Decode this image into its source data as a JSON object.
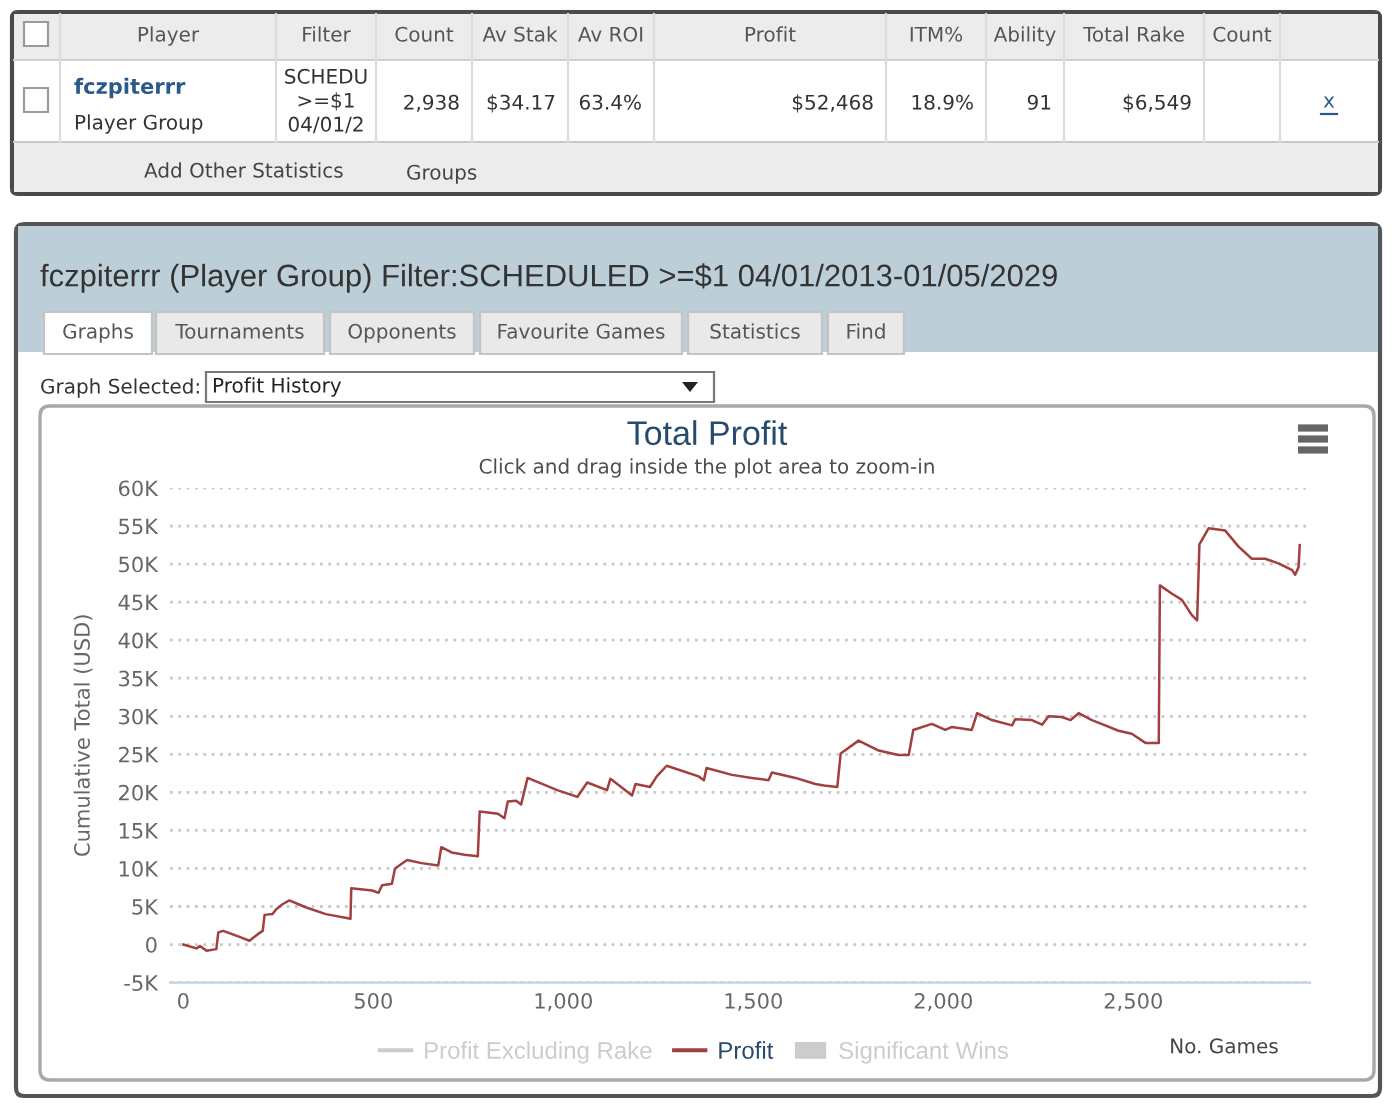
{
  "chart_data": [
    {
      "type": "other",
      "categories": [
        "Player",
        "Filter",
        "Count",
        "Av Stak",
        "Av ROI",
        "Profit",
        "ITM%",
        "Ability",
        "Total Rake",
        "Count"
      ],
      "annotations": [
        "fczpiterrr",
        "Player Group",
        "SCHEDU\n>=$1\n04/01/2",
        "2,938",
        "$34.17",
        "63.4%",
        "$52,468",
        "18.9%",
        "91",
        "$6,549",
        "x",
        "Add Other Statistics",
        "Groups"
      ]
    },
    {
      "type": "line",
      "title": "Total Profit",
      "subtitle": "Click and drag inside the plot area to zoom-in",
      "xlabel": "No. Games",
      "ylabel": "Cumulative Total (USD)",
      "annotations": [
        "fczpiterrr (Player Group) Filter:SCHEDULED >=$1 04/01/2013-01/05/2029",
        "Graphs",
        "Tournaments",
        "Opponents",
        "Favourite Games",
        "Statistics",
        "Find",
        "Graph Selected:",
        "Profit History"
      ],
      "xlim": [
        -35,
        2965
      ],
      "xticks": [
        0,
        500,
        {
          "value": 1000,
          "label": "1,000"
        },
        {
          "value": 1500,
          "label": "1,500"
        },
        {
          "value": 2000,
          "label": "2,000"
        },
        {
          "value": 2500,
          "label": "2,500"
        }
      ],
      "ylim": [
        -5000,
        60000
      ],
      "yticks": [
        {
          "value": -5000,
          "label": "-5K"
        },
        0,
        {
          "value": 5000,
          "label": "5K"
        },
        {
          "value": 10000,
          "label": "10K"
        },
        {
          "value": 15000,
          "label": "15K"
        },
        {
          "value": 20000,
          "label": "20K"
        },
        {
          "value": 25000,
          "label": "25K"
        },
        {
          "value": 30000,
          "label": "30K"
        },
        {
          "value": 35000,
          "label": "35K"
        },
        {
          "value": 40000,
          "label": "40K"
        },
        {
          "value": 45000,
          "label": "45K"
        },
        {
          "value": 50000,
          "label": "50K"
        },
        {
          "value": 55000,
          "label": "55K"
        },
        {
          "value": 60000,
          "label": "60K"
        }
      ],
      "grid": "y",
      "legend": "bottom",
      "series": [
        {
          "name": "Profit Excluding Rake",
          "type": "line",
          "color": "#cccccc"
        },
        {
          "name": "Profit",
          "type": "line",
          "color": "#a23f3f",
          "x": [
            0,
            35,
            44,
            61,
            87,
            92,
            105,
            148,
            174,
            197,
            209,
            214,
            235,
            244,
            261,
            279,
            322,
            375,
            430,
            440,
            442,
            497,
            514,
            523,
            549,
            557,
            589,
            627,
            671,
            679,
            706,
            740,
            775,
            780,
            828,
            845,
            854,
            876,
            889,
            906,
            984,
            1037,
            1063,
            1115,
            1124,
            1181,
            1190,
            1228,
            1246,
            1272,
            1356,
            1370,
            1377,
            1444,
            1496,
            1540,
            1549,
            1611,
            1663,
            1686,
            1721,
            1730,
            1777,
            1830,
            1882,
            1909,
            1921,
            1970,
            2005,
            2023,
            2075,
            2089,
            2128,
            2181,
            2189,
            2233,
            2260,
            2277,
            2312,
            2335,
            2356,
            2391,
            2426,
            2461,
            2496,
            2532,
            2567,
            2570,
            2602,
            2628,
            2654,
            2668,
            2674,
            2698,
            2742,
            2777,
            2812,
            2847,
            2882,
            2918,
            2926,
            2935,
            2938
          ],
          "values": [
            0,
            -500,
            -200,
            -800,
            -600,
            1600,
            1800,
            1000,
            500,
            1400,
            1800,
            3900,
            4000,
            4600,
            5300,
            5800,
            4900,
            4000,
            3500,
            3400,
            7400,
            7100,
            6800,
            7800,
            8000,
            10000,
            11100,
            10700,
            10400,
            12800,
            12100,
            11800,
            11600,
            17500,
            17200,
            16600,
            18800,
            18900,
            18400,
            21900,
            20300,
            19400,
            21300,
            20300,
            21800,
            19600,
            21100,
            20700,
            22100,
            23500,
            22100,
            21600,
            23200,
            22300,
            21900,
            21600,
            22600,
            21900,
            21100,
            20900,
            20700,
            25100,
            26800,
            25500,
            24900,
            24900,
            28200,
            29000,
            28200,
            28600,
            28200,
            30400,
            29500,
            28800,
            29600,
            29500,
            28900,
            30000,
            29900,
            29500,
            30400,
            29500,
            28800,
            28100,
            27700,
            26500,
            26500,
            47200,
            46100,
            45300,
            43300,
            42600,
            52600,
            54700,
            54400,
            52300,
            50700,
            50700,
            50100,
            49200,
            48600,
            49600,
            52500
          ]
        },
        {
          "name": "Significant Wins",
          "type": "bar",
          "color": "#cccccc"
        }
      ]
    }
  ]
}
